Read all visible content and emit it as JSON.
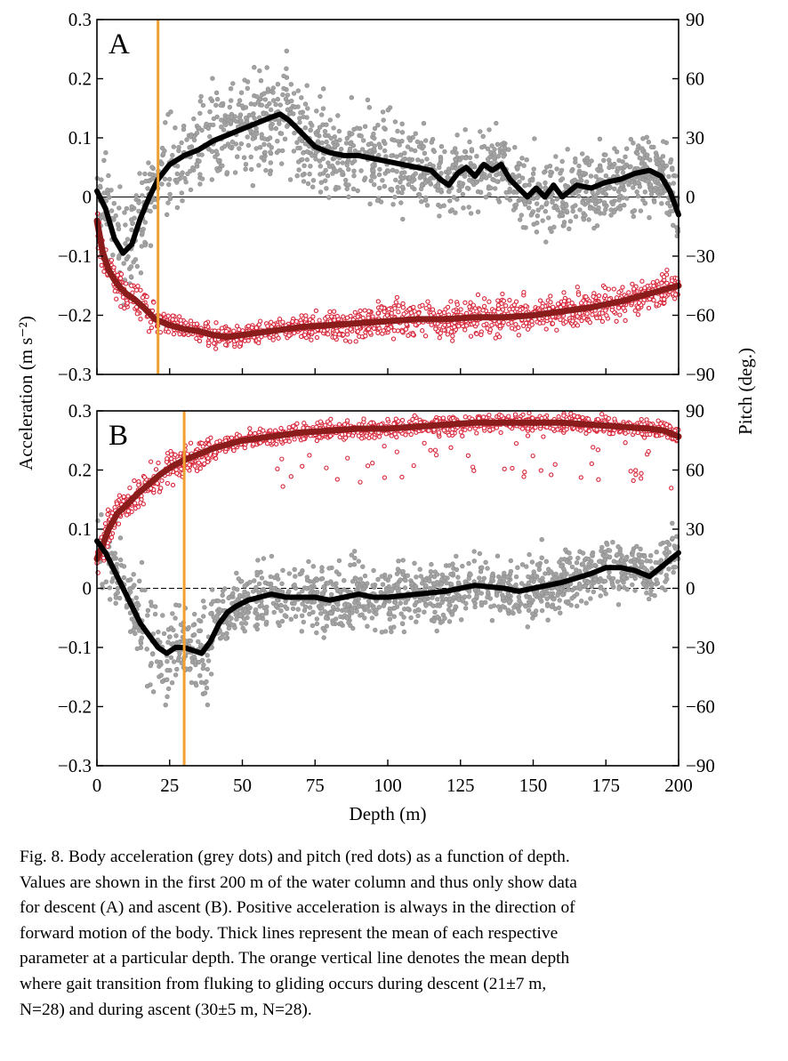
{
  "figure": {
    "y_label_left": "Acceleration (m s⁻²)",
    "y_label_right": "Pitch (deg.)",
    "x_label": "Depth (m)"
  },
  "caption": {
    "lines": [
      "Fig. 8. Body acceleration (grey dots) and pitch (red dots) as a function of depth.",
      "Values are shown in the first 200 m of the water column and thus only show data",
      "for descent (A) and ascent (B). Positive acceleration is always in the direction of",
      "forward motion of the body. Thick lines represent the mean of each respective",
      "parameter at a particular depth. The orange vertical line denotes the mean depth",
      "where gait transition from fluking to gliding occurs during descent (21±7 m,",
      "N=28) and during ascent (30±5 m, N=28)."
    ]
  },
  "colors": {
    "accel_dots": "#a3a3a3",
    "pitch_dots": "#d8283a",
    "accel_mean": "#000000",
    "pitch_mean": "#8b1c1c",
    "transition_line": "#f0a030"
  },
  "chart_data": [
    {
      "type": "scatter",
      "panel_label": "A",
      "x_range": [
        0,
        200
      ],
      "x_ticks": [
        "0",
        "25",
        "50",
        "75",
        "100",
        "125",
        "150",
        "175",
        "200"
      ],
      "y_left_range": [
        -0.3,
        0.3
      ],
      "y_left_ticks": [
        "−0.3",
        "−0.2",
        "−0.1",
        "0",
        "0.1",
        "0.2",
        "0.3"
      ],
      "y_right_range": [
        -90,
        90
      ],
      "y_right_ticks": [
        "−90",
        "−60",
        "−30",
        "0",
        "30",
        "60",
        "90"
      ],
      "transition_depth": 21,
      "series": [
        {
          "kind": "acceleration_mean",
          "axis": "left",
          "x": [
            0,
            3,
            6,
            9,
            12,
            15,
            18,
            21,
            25,
            30,
            35,
            40,
            45,
            50,
            55,
            60,
            63,
            66,
            70,
            75,
            80,
            85,
            90,
            95,
            100,
            105,
            110,
            115,
            118,
            121,
            124,
            127,
            130,
            133,
            136,
            139,
            142,
            145,
            148,
            151,
            154,
            157,
            160,
            165,
            170,
            175,
            180,
            185,
            190,
            194,
            197,
            200
          ],
          "y": [
            0.01,
            -0.02,
            -0.07,
            -0.095,
            -0.08,
            -0.035,
            0.0,
            0.03,
            0.055,
            0.07,
            0.08,
            0.095,
            0.105,
            0.115,
            0.125,
            0.135,
            0.14,
            0.13,
            0.11,
            0.085,
            0.075,
            0.07,
            0.07,
            0.065,
            0.06,
            0.055,
            0.05,
            0.045,
            0.03,
            0.02,
            0.04,
            0.05,
            0.035,
            0.055,
            0.045,
            0.055,
            0.03,
            0.015,
            0.0,
            0.015,
            0.0,
            0.02,
            0.0,
            0.02,
            0.015,
            0.025,
            0.03,
            0.04,
            0.045,
            0.035,
            0.01,
            -0.03
          ]
        },
        {
          "kind": "pitch_mean",
          "axis": "right",
          "x": [
            0,
            2,
            4,
            6,
            8,
            10,
            13,
            16,
            20,
            25,
            30,
            35,
            40,
            45,
            50,
            60,
            70,
            80,
            90,
            100,
            110,
            120,
            130,
            140,
            150,
            160,
            170,
            180,
            190,
            200
          ],
          "y": [
            -12,
            -28,
            -37,
            -42,
            -46,
            -49,
            -52,
            -56,
            -62,
            -65,
            -67,
            -68,
            -70,
            -71,
            -70,
            -68,
            -66,
            -65,
            -64,
            -63,
            -62,
            -62,
            -61,
            -61,
            -60,
            -58,
            -56,
            -53,
            -49,
            -45
          ]
        }
      ]
    },
    {
      "type": "scatter",
      "panel_label": "B",
      "x_range": [
        0,
        200
      ],
      "x_ticks": [
        "0",
        "25",
        "50",
        "75",
        "100",
        "125",
        "150",
        "175",
        "200"
      ],
      "y_left_range": [
        -0.3,
        0.3
      ],
      "y_left_ticks": [
        "−0.3",
        "−0.2",
        "−0.1",
        "0",
        "0.1",
        "0.2",
        "0.3"
      ],
      "y_right_range": [
        -90,
        90
      ],
      "y_right_ticks": [
        "−90",
        "−60",
        "−30",
        "0",
        "30",
        "60",
        "90"
      ],
      "transition_depth": 30,
      "series": [
        {
          "kind": "acceleration_mean",
          "axis": "left",
          "x": [
            0,
            3,
            6,
            9,
            12,
            15,
            18,
            21,
            24,
            27,
            30,
            33,
            36,
            39,
            42,
            45,
            48,
            52,
            56,
            60,
            65,
            70,
            75,
            80,
            85,
            90,
            95,
            100,
            110,
            120,
            130,
            140,
            145,
            150,
            160,
            170,
            175,
            180,
            185,
            190,
            195,
            200
          ],
          "y": [
            0.08,
            0.06,
            0.03,
            0.0,
            -0.03,
            -0.06,
            -0.08,
            -0.1,
            -0.11,
            -0.1,
            -0.1,
            -0.105,
            -0.11,
            -0.09,
            -0.06,
            -0.04,
            -0.03,
            -0.02,
            -0.015,
            -0.01,
            -0.015,
            -0.015,
            -0.015,
            -0.02,
            -0.015,
            -0.01,
            -0.015,
            -0.015,
            -0.01,
            -0.005,
            0.005,
            0.0,
            -0.005,
            0.0,
            0.01,
            0.025,
            0.035,
            0.035,
            0.03,
            0.02,
            0.04,
            0.06
          ]
        },
        {
          "kind": "pitch_mean",
          "axis": "right",
          "x": [
            0,
            2,
            4,
            7,
            10,
            14,
            18,
            22,
            26,
            30,
            35,
            40,
            45,
            50,
            60,
            70,
            80,
            90,
            100,
            110,
            120,
            130,
            140,
            150,
            160,
            170,
            180,
            190,
            195,
            200
          ],
          "y": [
            15,
            22,
            30,
            38,
            42,
            48,
            53,
            58,
            62,
            65,
            68,
            71,
            73,
            75,
            77,
            79,
            80,
            81,
            81,
            82,
            83,
            84,
            84,
            84,
            84,
            83,
            82,
            81,
            80,
            77
          ]
        }
      ]
    }
  ]
}
